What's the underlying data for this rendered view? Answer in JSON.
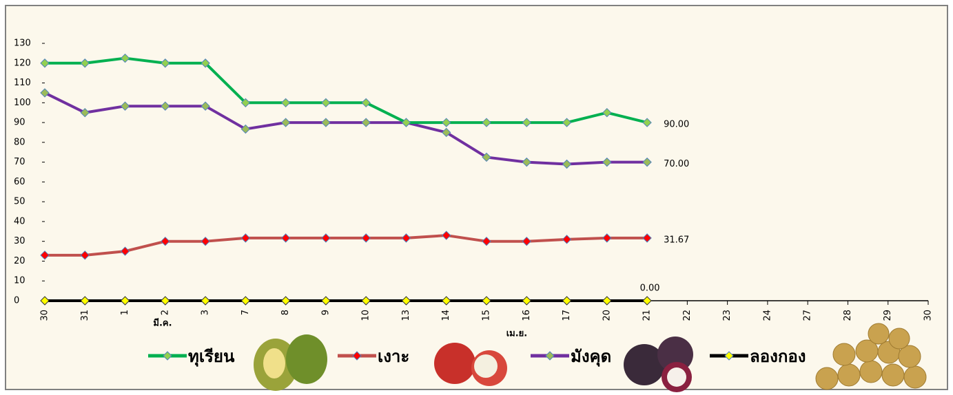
{
  "chart_data": {
    "type": "line",
    "categories": [
      "30",
      "31",
      "1",
      "2",
      "3",
      "7",
      "8",
      "9",
      "10",
      "13",
      "14",
      "15",
      "16",
      "17",
      "20",
      "21",
      "22",
      "23",
      "24",
      "27",
      "28",
      "29",
      "30"
    ],
    "month_labels": [
      "มี.ค.",
      "เม.ย."
    ],
    "ylim": [
      0,
      130
    ],
    "yticks": [
      0,
      10,
      20,
      30,
      40,
      50,
      60,
      70,
      80,
      90,
      100,
      110,
      120,
      130
    ],
    "series": [
      {
        "name": "ทุเรียน",
        "color": "#00b050",
        "marker_color": "#92d050",
        "label_color": "#00b050",
        "values": [
          120,
          120,
          122.5,
          120,
          120,
          100,
          100,
          100,
          100,
          90,
          90,
          90,
          90,
          90,
          95,
          90,
          null,
          null,
          null,
          null,
          null,
          null,
          null
        ],
        "value_labels": [
          null,
          null,
          null,
          null,
          null,
          null,
          null,
          null,
          null,
          null,
          null,
          null,
          null,
          null,
          null,
          "90.00",
          null,
          null,
          null,
          null,
          null,
          null,
          null
        ]
      },
      {
        "name": "เงาะ",
        "color": "#c0504d",
        "marker_color": "#ff0000",
        "label_color": "#ff0000",
        "values": [
          23,
          23,
          25,
          30,
          30,
          31.67,
          31.67,
          31.67,
          31.67,
          31.67,
          33,
          30,
          30,
          31,
          31.67,
          31.67,
          null,
          null,
          null,
          null,
          null,
          null,
          null
        ],
        "value_labels": [
          null,
          null,
          null,
          null,
          null,
          null,
          null,
          null,
          null,
          null,
          null,
          null,
          null,
          null,
          null,
          "31.67",
          null,
          null,
          null,
          null,
          null,
          null,
          null
        ]
      },
      {
        "name": "มังคุด",
        "color": "#7030a0",
        "marker_color": "#9bbb59",
        "label_color": "#1f3864",
        "values": [
          105,
          95,
          98.3,
          98.3,
          98.3,
          86.7,
          90,
          90,
          90,
          90,
          85,
          72.5,
          70,
          69,
          70,
          70,
          null,
          null,
          null,
          null,
          null,
          null,
          null
        ],
        "value_labels": [
          null,
          null,
          null,
          null,
          null,
          null,
          null,
          null,
          null,
          null,
          null,
          null,
          null,
          null,
          null,
          "70.00",
          null,
          null,
          null,
          null,
          null,
          null,
          null
        ]
      },
      {
        "name": "ลองกอง",
        "color": "#000000",
        "marker_color": "#ffff00",
        "label_color": "#000000",
        "values": [
          0,
          0,
          0,
          0,
          0,
          0,
          0,
          0,
          0,
          0,
          0,
          0,
          0,
          0,
          0,
          0,
          null,
          null,
          null,
          null,
          null,
          null,
          null
        ],
        "value_labels": [
          null,
          null,
          null,
          null,
          null,
          null,
          null,
          null,
          null,
          null,
          null,
          null,
          null,
          null,
          null,
          "0.00",
          null,
          null,
          null,
          null,
          null,
          null,
          null
        ]
      }
    ]
  }
}
